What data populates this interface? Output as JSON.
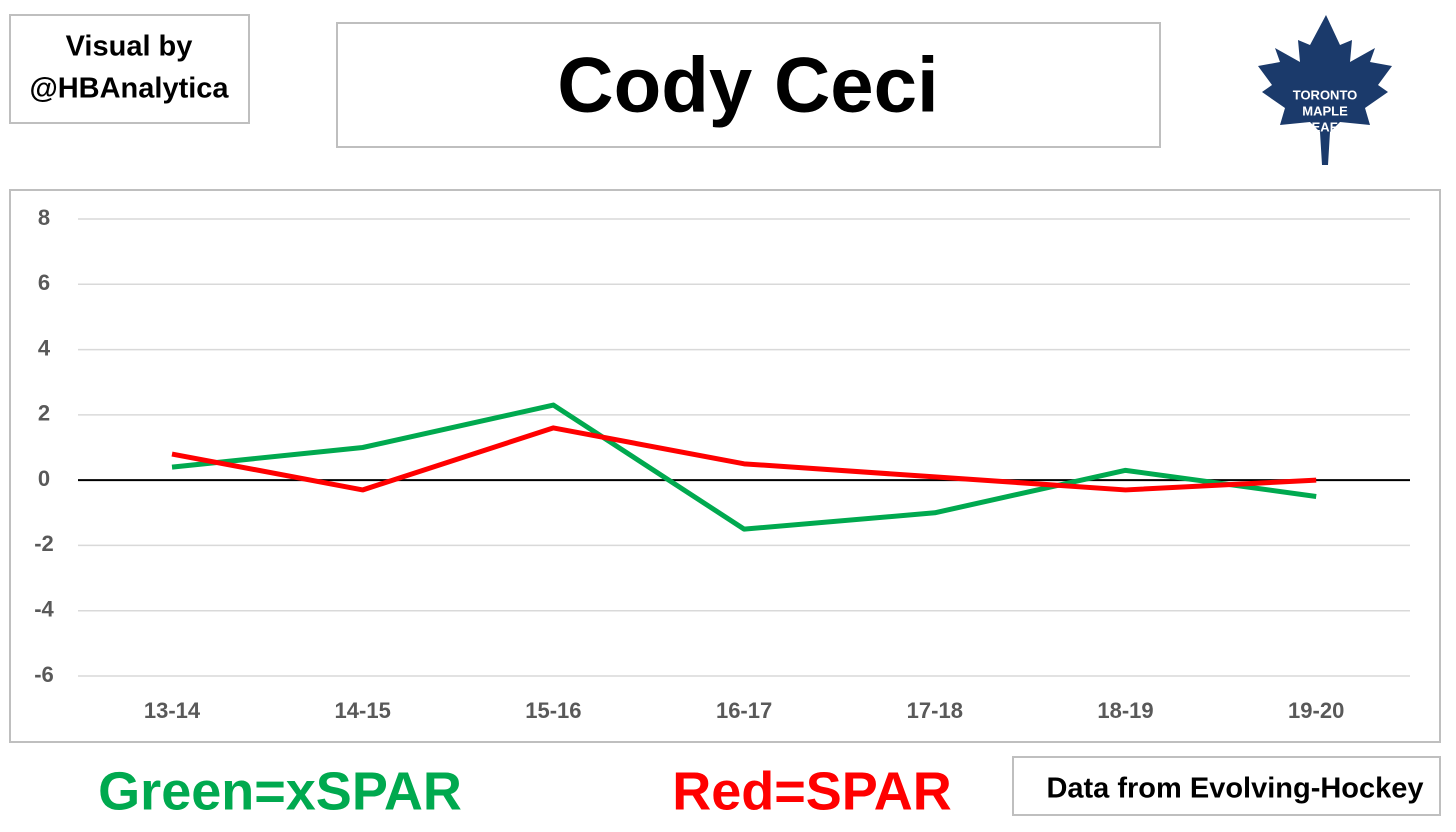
{
  "chart_data": {
    "type": "line",
    "title": "Cody Ceci",
    "credit": [
      "Visual by",
      "@HBAnalytica"
    ],
    "logo_text": [
      "TORONTO",
      "MAPLE",
      "LEAFS"
    ],
    "source": "Data from Evolving-Hockey",
    "categories": [
      "13-14",
      "14-15",
      "15-16",
      "16-17",
      "17-18",
      "18-19",
      "19-20"
    ],
    "series": [
      {
        "name": "Green=xSPAR",
        "color": "#00a94f",
        "values": [
          0.4,
          1.0,
          2.3,
          -1.5,
          -1.0,
          0.3,
          -0.5
        ]
      },
      {
        "name": "Red=SPAR",
        "color": "#ff0000",
        "values": [
          0.8,
          -0.3,
          1.6,
          0.5,
          0.1,
          -0.3,
          0.0
        ]
      }
    ],
    "ylim": [
      -6,
      8
    ],
    "yticks": [
      -6,
      -4,
      -2,
      0,
      2,
      4,
      6,
      8
    ],
    "grid": true
  }
}
